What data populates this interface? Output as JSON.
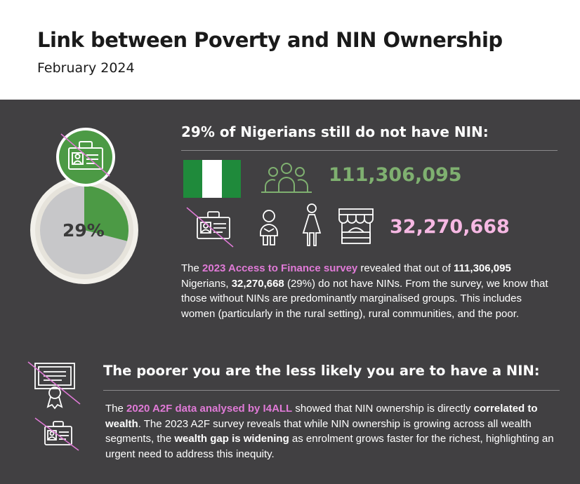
{
  "header": {
    "title": "Link between Poverty and NIN Ownership",
    "subtitle": "February 2024"
  },
  "section1": {
    "heading": "29% of Nigerians still do not have NIN:",
    "pie_label": "29%",
    "pie_share_without_nin": 0.29,
    "total_population": "111,306,095",
    "without_nin": "32,270,668",
    "paragraph": {
      "p1": "The ",
      "link": "2023 Access to Finance survey",
      "p2": " revealed that out of ",
      "b1": "111,306,095",
      "p3": " Nigerians, ",
      "b2": "32,270,668",
      "p4": " (29%) do not have NINs. From the survey, we know that those without NINs are predominantly marginalised groups. This includes women (particularly in the rural setting), rural communities, and the poor."
    },
    "icons": [
      "id-card-icon",
      "nigeria-flag-icon",
      "people-group-icon",
      "elderly-person-icon",
      "woman-icon",
      "market-stall-icon"
    ]
  },
  "section2": {
    "heading": "The poorer you are the less likely you are to have a NIN:",
    "paragraph": {
      "p1": "The ",
      "link": "2020 A2F data analysed by I4ALL",
      "p2": " showed that NIN ownership is directly ",
      "b1": "correlated to wealth",
      "p3": ". The 2023 A2F survey reveals that while NIN ownership is growing across all wealth segments, the ",
      "b2": "wealth gap is widening",
      "p4": " as enrolment grows faster for the richest, highlighting an urgent need to address this inequity."
    },
    "icons": [
      "certificate-icon",
      "id-card-icon"
    ]
  },
  "colors": {
    "panel": "#414042",
    "green": "#4c9a45",
    "green_text": "#7fb070",
    "pink_text": "#f6b8e3",
    "highlight": "#e07ad7",
    "pie_grey": "#c7c7c9"
  }
}
